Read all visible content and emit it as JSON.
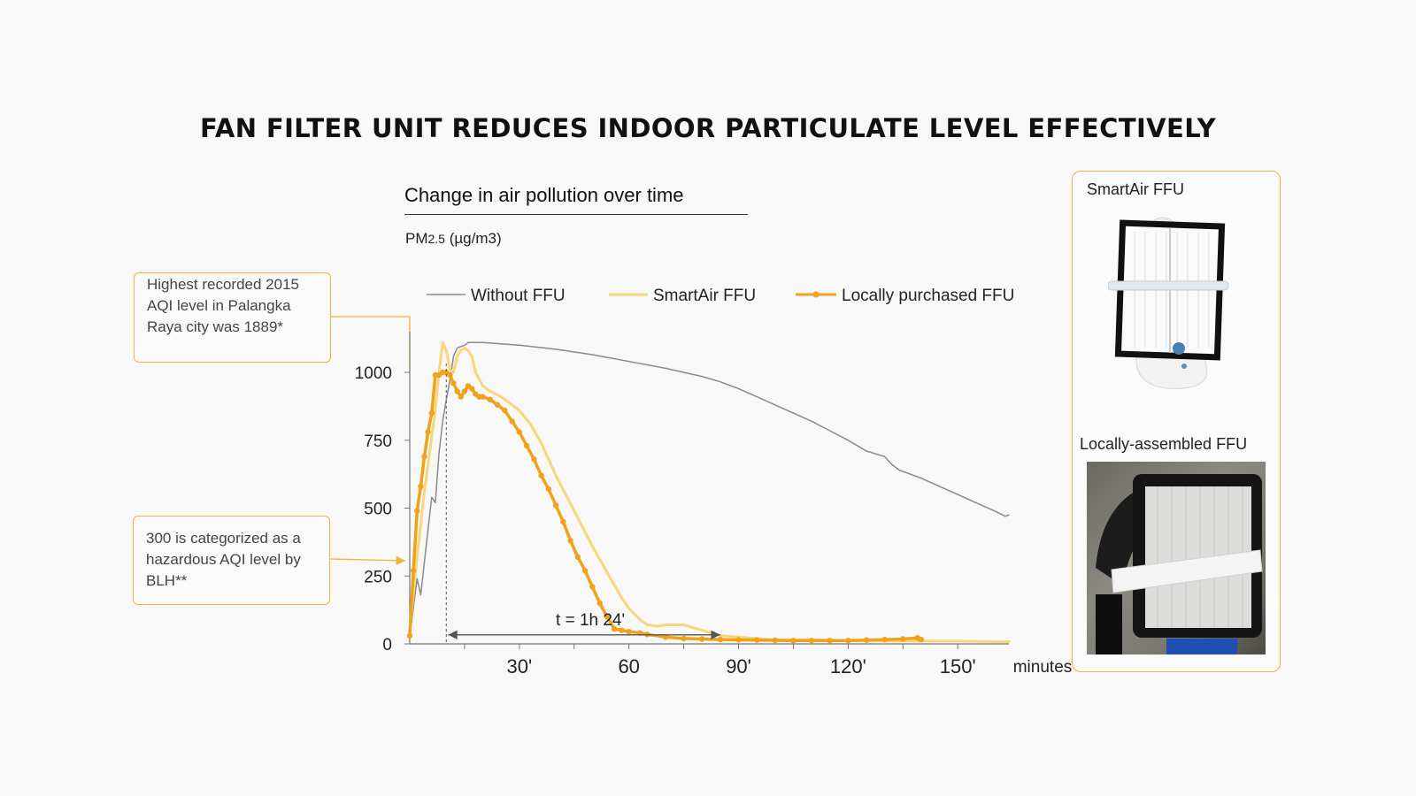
{
  "title": "FAN FILTER UNIT REDUCES INDOOR PARTICULATE LEVEL EFFECTIVELY",
  "chart": {
    "title": "Change in air pollution over time",
    "y_unit_main": "PM",
    "y_unit_sub": "2.5",
    "y_unit_rest": " (µg/m3)",
    "x_unit": "minutes",
    "duration_label": "t = 1h 24'"
  },
  "callouts": {
    "aqi_high": "Highest recorded 2015 AQI level in Palangka Raya city was 1889*",
    "aqi_hazard": "300 is categorized as a hazardous AQI level by BLH**"
  },
  "photos": {
    "smartair_label": "SmartAir FFU",
    "local_label": "Locally-assembled FFU"
  },
  "colors": {
    "without": "#8a8a8a",
    "smartair": "#f7d77a",
    "local": "#f0a21c",
    "accent": "#f1b23a"
  },
  "chart_data": {
    "type": "line",
    "title": "Change in air pollution over time",
    "ylabel": "PM2.5 (µg/m3)",
    "xlabel": "minutes",
    "xlim": [
      0,
      164
    ],
    "ylim": [
      0,
      1150
    ],
    "y_ticks": [
      0,
      250,
      500,
      750,
      1000
    ],
    "x_ticks": [
      {
        "value": 30,
        "label": "30'"
      },
      {
        "value": 60,
        "label": "60"
      },
      {
        "value": 90,
        "label": "90'"
      },
      {
        "value": 120,
        "label": "120'"
      },
      {
        "value": 150,
        "label": "150'"
      }
    ],
    "series": [
      {
        "name": "Without FFU",
        "x": [
          0,
          2,
          3,
          4,
          5,
          6,
          7,
          8,
          9,
          10,
          11,
          12,
          13,
          14,
          15,
          16,
          20,
          30,
          40,
          50,
          60,
          70,
          75,
          80,
          85,
          90,
          95,
          100,
          105,
          110,
          115,
          120,
          125,
          130,
          132,
          134,
          140,
          145,
          150,
          155,
          160,
          163,
          164
        ],
        "y": [
          30,
          240,
          180,
          300,
          420,
          540,
          520,
          700,
          820,
          900,
          970,
          1060,
          1090,
          1095,
          1100,
          1110,
          1110,
          1100,
          1085,
          1065,
          1040,
          1015,
          1000,
          985,
          965,
          940,
          910,
          880,
          850,
          820,
          785,
          750,
          710,
          690,
          660,
          640,
          610,
          580,
          550,
          520,
          490,
          470,
          475
        ]
      },
      {
        "name": "SmartAir FFU",
        "x": [
          0,
          2,
          4,
          6,
          7,
          8,
          9,
          10,
          11,
          12,
          13,
          14,
          15,
          16,
          17,
          18,
          20,
          22,
          25,
          28,
          30,
          33,
          36,
          40,
          45,
          50,
          55,
          58,
          60,
          63,
          65,
          68,
          70,
          75,
          80,
          85,
          90,
          95,
          100,
          110,
          120,
          130,
          140,
          150,
          160,
          164
        ],
        "y": [
          50,
          320,
          560,
          760,
          860,
          1000,
          1110,
          1080,
          1010,
          1000,
          1060,
          1080,
          1090,
          1080,
          1060,
          1000,
          950,
          930,
          910,
          880,
          860,
          810,
          740,
          620,
          490,
          360,
          240,
          170,
          130,
          90,
          70,
          65,
          70,
          70,
          50,
          30,
          25,
          20,
          15,
          15,
          12,
          10,
          10,
          10,
          8,
          8
        ]
      },
      {
        "name": "Locally purchased FFU",
        "x": [
          0,
          1,
          2,
          3,
          4,
          5,
          6,
          7,
          8,
          9,
          10,
          11,
          12,
          13,
          14,
          15,
          16,
          17,
          18,
          19,
          20,
          22,
          24,
          26,
          28,
          30,
          32,
          34,
          36,
          38,
          40,
          42,
          44,
          46,
          48,
          50,
          52,
          54,
          56,
          58,
          60,
          63,
          65,
          70,
          75,
          80,
          85,
          90,
          95,
          100,
          105,
          110,
          115,
          120,
          125,
          130,
          135,
          139,
          140
        ],
        "y": [
          30,
          270,
          490,
          580,
          690,
          780,
          850,
          990,
          990,
          1000,
          1000,
          990,
          960,
          930,
          910,
          930,
          950,
          940,
          920,
          910,
          910,
          900,
          880,
          860,
          820,
          780,
          730,
          680,
          620,
          570,
          510,
          450,
          380,
          320,
          270,
          210,
          150,
          100,
          55,
          50,
          45,
          40,
          35,
          25,
          20,
          18,
          16,
          15,
          14,
          13,
          12,
          12,
          12,
          12,
          14,
          16,
          18,
          22,
          16
        ]
      }
    ],
    "annotations": [
      {
        "text": "t = 1h 24'",
        "from_x": 10,
        "to_x": 85,
        "y": 30
      },
      {
        "text": "Highest recorded 2015 AQI level in Palangka Raya city was 1889*"
      },
      {
        "text": "300 is categorized as a hazardous AQI level by BLH**",
        "y": 300
      }
    ]
  }
}
